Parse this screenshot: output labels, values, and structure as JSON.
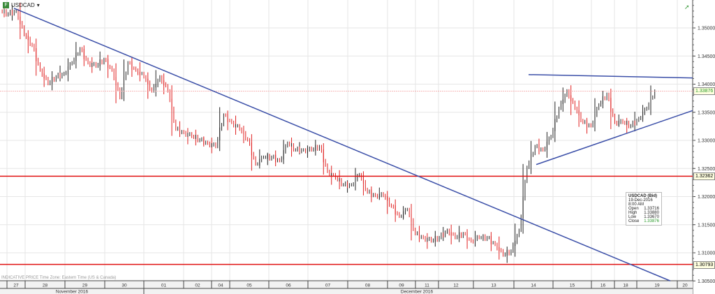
{
  "header": {
    "symbol": "USDCAD",
    "dropdown_icon": "caret-down-icon",
    "icon_letter": "F"
  },
  "note": "INDICATIVE PRICE   Time Zone: Eastern Time (US & Canada)",
  "legend": {
    "title": "USDCAD (Bid)",
    "datetime": "19-Dec-2016 8:00 AM",
    "rows": [
      {
        "label": "Open",
        "value": "1.33716"
      },
      {
        "label": "High",
        "value": "1.33880"
      },
      {
        "label": "Low",
        "value": "1.33670"
      },
      {
        "label": "Close",
        "value": "1.33876"
      }
    ]
  },
  "colors": {
    "up": "#222222",
    "down": "#e02020",
    "trend": "#3b4fa8",
    "level": "#e01010",
    "last": "#2a9a2a"
  },
  "chart_data": {
    "type": "candlestick",
    "ylim": [
      1.305,
      1.3535
    ],
    "yticks": [
      "1.35000",
      "1.34500",
      "1.34000",
      "1.33500",
      "1.33000",
      "1.32500",
      "1.32000",
      "1.31500",
      "1.31000",
      "1.30500"
    ],
    "ytick_values": [
      1.35,
      1.345,
      1.34,
      1.335,
      1.33,
      1.325,
      1.32,
      1.315,
      1.31,
      1.305
    ],
    "xticks": [
      "27",
      "28",
      "29",
      "30",
      "01",
      "02",
      "04",
      "05",
      "06",
      "07",
      "08",
      "09",
      "11",
      "12",
      "13",
      "14",
      "15",
      "16",
      "18",
      "19",
      "20"
    ],
    "months": [
      "November 2016",
      "December 2016"
    ],
    "closes": [
      1.3525,
      1.3531,
      1.3488,
      1.3469,
      1.3425,
      1.3401,
      1.3413,
      1.3419,
      1.3438,
      1.3463,
      1.3438,
      1.3432,
      1.3444,
      1.3425,
      1.3376,
      1.3438,
      1.3425,
      1.3413,
      1.3388,
      1.3413,
      1.3388,
      1.332,
      1.3314,
      1.3307,
      1.3301,
      1.3295,
      1.3289,
      1.3345,
      1.3332,
      1.332,
      1.3301,
      1.3258,
      1.327,
      1.327,
      1.3264,
      1.3295,
      1.3283,
      1.3283,
      1.3283,
      1.3289,
      1.3245,
      1.3233,
      1.3221,
      1.3221,
      1.3239,
      1.3208,
      1.3202,
      1.3202,
      1.3183,
      1.3165,
      1.3177,
      1.3134,
      1.3127,
      1.3121,
      1.3127,
      1.314,
      1.3127,
      1.3134,
      1.3121,
      1.3127,
      1.3127,
      1.3115,
      1.3096,
      1.3103,
      1.314,
      1.3252,
      1.3289,
      1.3283,
      1.3307,
      1.3357,
      1.3388,
      1.3357,
      1.3332,
      1.3326,
      1.3363,
      1.3382,
      1.3332,
      1.3332,
      1.3326,
      1.3339,
      1.3357,
      1.33876
    ],
    "levels": [
      {
        "price": 1.32362,
        "label": "1.32362",
        "style": "solid"
      },
      {
        "price": 1.30793,
        "label": "1.30793",
        "style": "solid"
      },
      {
        "price": 1.33876,
        "label": "1.33876",
        "style": "dotted"
      }
    ],
    "trendlines": [
      {
        "from": 1.3535,
        "to": 1.305
      },
      {
        "from": 1.3417,
        "to": 1.3411
      },
      {
        "from": 1.3257,
        "to": 1.3353
      }
    ],
    "grid": true
  }
}
